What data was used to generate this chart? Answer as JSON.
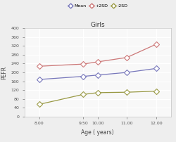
{
  "title": "Girls",
  "xlabel": "Age ( years)",
  "ylabel": "PEFR",
  "ages": [
    8.0,
    9.5,
    10.0,
    11.0,
    12.0
  ],
  "mean": [
    168,
    182,
    188,
    200,
    218
  ],
  "plus2sd": [
    228,
    238,
    248,
    268,
    328
  ],
  "minus2sd": [
    55,
    100,
    108,
    110,
    115
  ],
  "mean_color": "#7777bb",
  "plus2sd_color": "#cc7777",
  "minus2sd_color": "#999944",
  "ylim": [
    0,
    400
  ],
  "xlim": [
    7.5,
    12.5
  ],
  "xticks": [
    8.0,
    9.5,
    10.0,
    11.0,
    12.0
  ],
  "yticks": [
    0,
    40,
    80,
    120,
    160,
    200,
    240,
    280,
    320,
    360,
    400
  ],
  "legend_labels": [
    "Mean",
    "+2SD",
    "-2SD"
  ],
  "background": "#eeeeee",
  "plot_bg": "#f8f8f8",
  "grid_color": "#ffffff"
}
